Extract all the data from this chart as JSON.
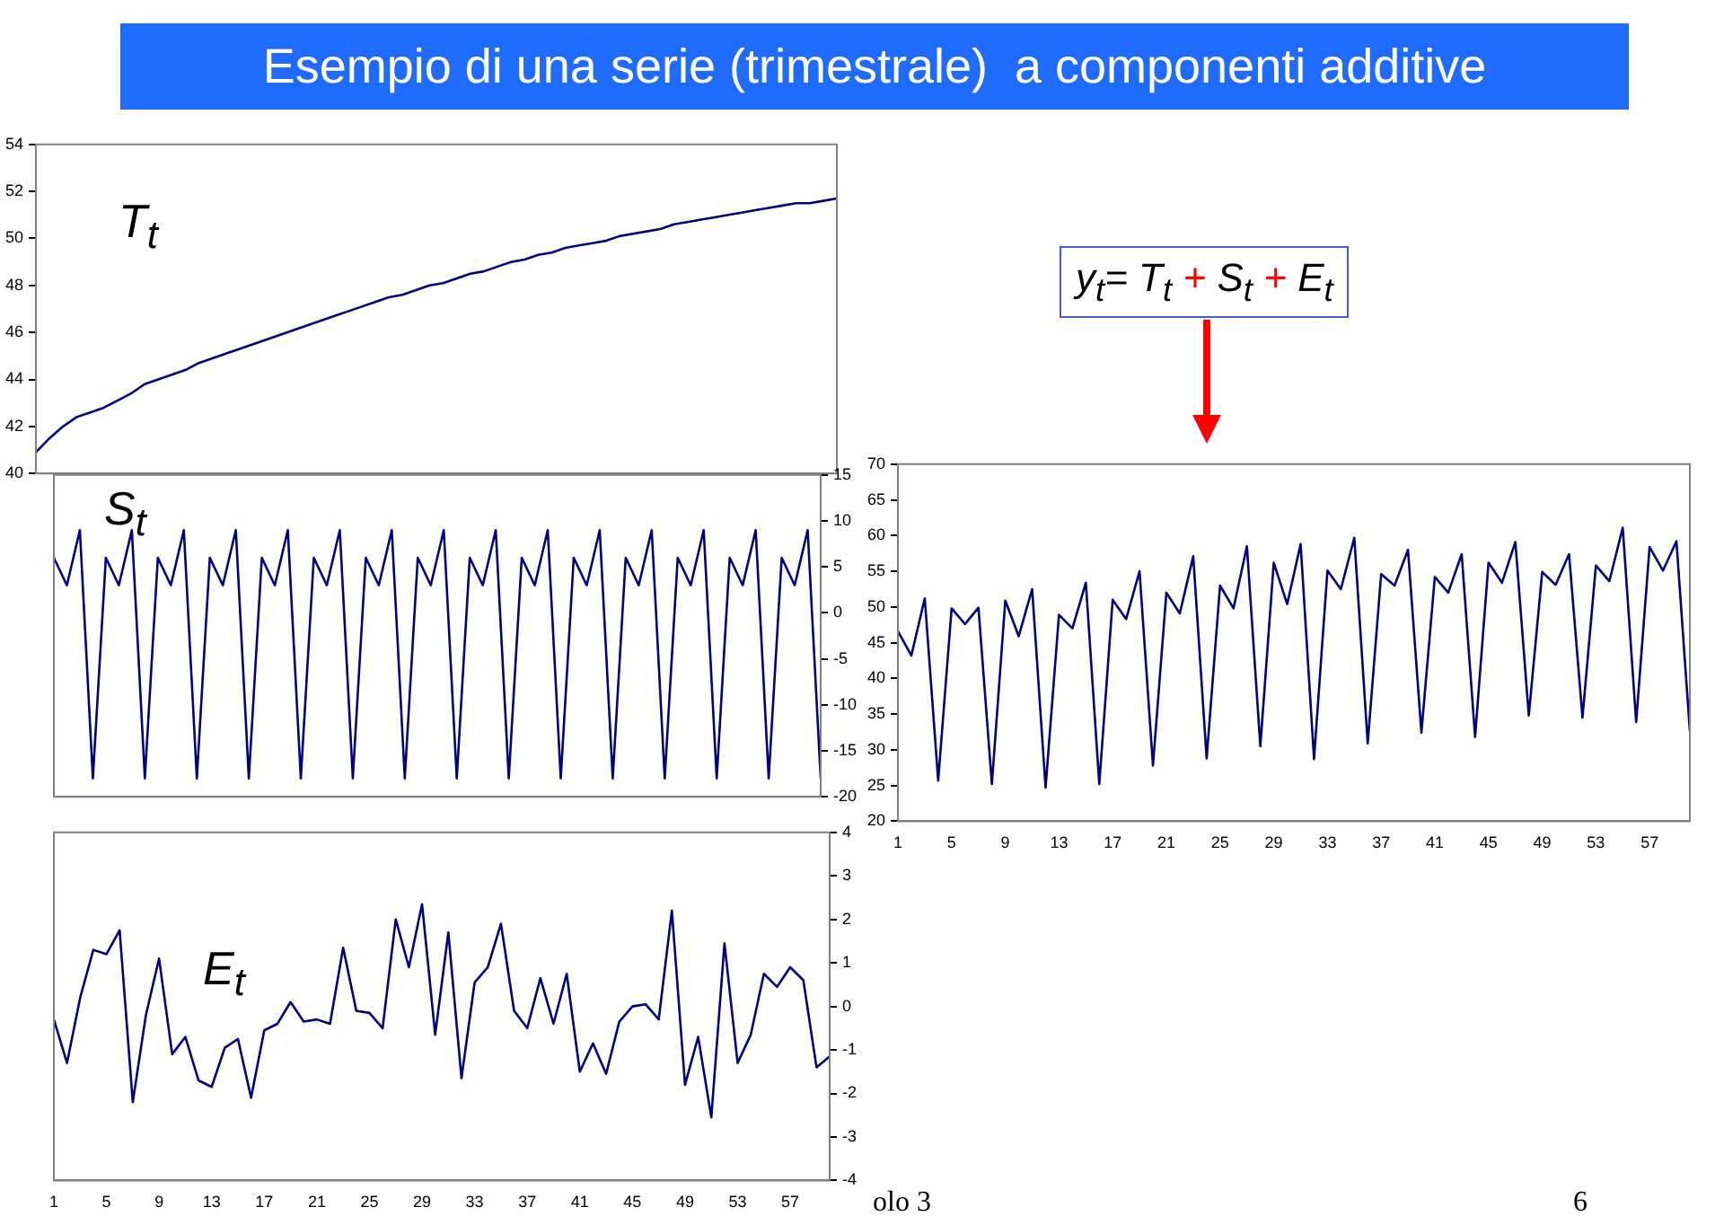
{
  "chart_data": [
    {
      "type": "line",
      "title": "Esempio di una serie (trimestrale)  a componenti additive",
      "annotations": [
        "T$_{t}$"
      ],
      "tick_labels": "y",
      "ylim": [
        40,
        54
      ],
      "yticks": [
        40,
        42,
        44,
        46,
        48,
        50,
        52,
        54
      ],
      "categories": [
        null,
        null,
        null,
        null,
        null,
        null,
        null,
        null,
        null,
        null,
        null,
        null,
        null,
        null,
        null,
        null,
        null,
        null,
        null,
        null,
        null,
        null,
        null,
        null,
        null,
        null,
        null,
        null,
        null,
        null,
        null,
        null,
        null,
        null,
        null,
        null,
        null,
        null,
        null,
        null,
        null,
        null,
        null,
        null,
        null,
        null,
        null,
        null,
        null,
        null,
        null,
        null,
        null,
        null,
        null,
        null,
        null,
        null,
        null,
        null
      ],
      "series": [
        {
          "color": "#000080",
          "values": [
            40.9,
            41.5,
            42.0,
            42.4,
            42.6,
            42.8,
            43.1,
            43.4,
            43.8,
            44.0,
            44.2,
            44.4,
            44.7,
            44.9,
            45.1,
            45.3,
            45.5,
            45.7,
            45.9,
            46.1,
            46.3,
            46.5,
            46.7,
            46.9,
            47.1,
            47.3,
            47.5,
            47.6,
            47.8,
            48.0,
            48.1,
            48.3,
            48.5,
            48.6,
            48.8,
            49.0,
            49.1,
            49.3,
            49.4,
            49.6,
            49.7,
            49.8,
            49.9,
            50.1,
            50.2,
            50.3,
            50.4,
            50.6,
            50.7,
            50.8,
            50.9,
            51.0,
            51.1,
            51.2,
            51.3,
            51.4,
            51.5,
            51.5,
            51.6,
            51.7
          ]
        }
      ]
    },
    {
      "type": "line",
      "annotations": [
        "S$_{t}$"
      ],
      "tick_labels": "y",
      "ylim": [
        -20,
        15
      ],
      "yticks": [
        -20,
        -15,
        -10,
        -5,
        0,
        5,
        10,
        15
      ],
      "categories": [
        null,
        null,
        null,
        null,
        null,
        null,
        null,
        null,
        null,
        null,
        null,
        null,
        null,
        null,
        null,
        null,
        null,
        null,
        null,
        null,
        null,
        null,
        null,
        null,
        null,
        null,
        null,
        null,
        null,
        null,
        null,
        null,
        null,
        null,
        null,
        null,
        null,
        null,
        null,
        null,
        null,
        null,
        null,
        null,
        null,
        null,
        null,
        null,
        null,
        null,
        null,
        null,
        null,
        null,
        null,
        null,
        null,
        null,
        null,
        null
      ],
      "series": [
        {
          "color": "#000080",
          "values": [
            6,
            3,
            9,
            -18,
            6,
            3,
            9,
            -18,
            6,
            3,
            9,
            -18,
            6,
            3,
            9,
            -18,
            6,
            3,
            9,
            -18,
            6,
            3,
            9,
            -18,
            6,
            3,
            9,
            -18,
            6,
            3,
            9,
            -18,
            6,
            3,
            9,
            -18,
            6,
            3,
            9,
            -18,
            6,
            3,
            9,
            -18,
            6,
            3,
            9,
            -18,
            6,
            3,
            9,
            -18,
            6,
            3,
            9,
            -18,
            6,
            3,
            9,
            -18
          ]
        }
      ]
    },
    {
      "type": "line",
      "annotations": [
        "E$_{t}$",
        "olo 3",
        "6"
      ],
      "ylim": [
        -4,
        4
      ],
      "yticks": [
        -4,
        -3,
        -2,
        -1,
        0,
        1,
        2,
        3,
        4
      ],
      "categories": [
        "1",
        null,
        null,
        null,
        "5",
        null,
        null,
        null,
        "9",
        null,
        null,
        null,
        "13",
        null,
        null,
        null,
        "17",
        null,
        null,
        null,
        "21",
        null,
        null,
        null,
        "25",
        null,
        null,
        null,
        "29",
        null,
        null,
        null,
        "33",
        null,
        null,
        null,
        "37",
        null,
        null,
        null,
        "41",
        null,
        null,
        null,
        "45",
        null,
        null,
        null,
        "49",
        null,
        null,
        null,
        "53",
        null,
        null,
        null,
        "57",
        null,
        null,
        null
      ],
      "series": [
        {
          "color": "#000080",
          "values": [
            -0.3,
            -1.3,
            0.2,
            1.3,
            1.2,
            1.75,
            -2.2,
            -0.2,
            1.1,
            -1.1,
            -0.7,
            -1.7,
            -1.85,
            -0.95,
            -0.75,
            -2.1,
            -0.55,
            -0.4,
            0.1,
            -0.35,
            -0.3,
            -0.4,
            1.35,
            -0.1,
            -0.15,
            -0.5,
            2.0,
            0.9,
            2.35,
            -0.65,
            1.7,
            -1.65,
            0.55,
            0.9,
            1.9,
            -0.1,
            -0.5,
            0.65,
            -0.4,
            0.75,
            -1.5,
            -0.85,
            -1.55,
            -0.35,
            0.0,
            0.05,
            -0.3,
            2.2,
            -1.8,
            -0.7,
            -2.55,
            1.45,
            -1.3,
            -0.65,
            0.75,
            0.45,
            0.9,
            0.6,
            -1.4,
            -1.15
          ]
        }
      ]
    },
    {
      "type": "line",
      "annotations": [
        "y$_{t}$= T$_{t}$ + S$_{t}$ + E$_{t}$"
      ],
      "ylim": [
        20,
        70
      ],
      "yticks": [
        20,
        25,
        30,
        35,
        40,
        45,
        50,
        55,
        60,
        65,
        70
      ],
      "categories": [
        "1",
        null,
        null,
        null,
        "5",
        null,
        null,
        null,
        "9",
        null,
        null,
        null,
        "13",
        null,
        null,
        null,
        "17",
        null,
        null,
        null,
        "21",
        null,
        null,
        null,
        "25",
        null,
        null,
        null,
        "29",
        null,
        null,
        null,
        "33",
        null,
        null,
        null,
        "37",
        null,
        null,
        null,
        "41",
        null,
        null,
        null,
        "45",
        null,
        null,
        null,
        "49",
        null,
        null,
        null,
        "53",
        null,
        null,
        null,
        "57",
        null,
        null,
        null
      ],
      "series": [
        {
          "color": "#000080",
          "values": [
            46.6,
            43.2,
            51.2,
            25.7,
            49.8,
            47.6,
            49.9,
            25.2,
            50.9,
            45.9,
            52.5,
            24.7,
            48.9,
            47.0,
            53.4,
            25.2,
            51.0,
            48.3,
            55.0,
            27.8,
            52.0,
            49.1,
            57.1,
            28.8,
            53.0,
            49.8,
            58.5,
            30.5,
            56.2,
            50.4,
            58.8,
            28.7,
            55.1,
            52.5,
            59.7,
            30.9,
            54.6,
            53.0,
            58.0,
            32.4,
            54.2,
            52.0,
            57.4,
            31.8,
            56.2,
            53.4,
            59.1,
            34.8,
            54.9,
            53.1,
            57.4,
            34.5,
            55.8,
            53.6,
            61.1,
            33.9,
            58.4,
            55.1,
            59.2,
            32.6
          ]
        }
      ]
    }
  ]
}
